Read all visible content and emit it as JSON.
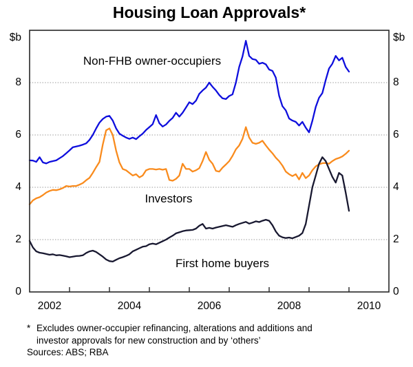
{
  "title": "Housing Loan Approvals*",
  "axes": {
    "unit_left": "$b",
    "unit_right": "$b",
    "y_ticks": [
      0,
      2,
      4,
      6,
      8
    ],
    "x_tick_years": [
      "2002",
      "2004",
      "2006",
      "2008",
      "2010"
    ]
  },
  "footnote": {
    "marker": "*",
    "line1": "Excludes owner-occupier refinancing, alterations and additions and",
    "line2": "investor approvals for new construction and by ‘others’",
    "sources": "Sources: ABS; RBA"
  },
  "colors": {
    "non_fhb": "#0e0edd",
    "investors": "#f98b1d",
    "fhb": "#181830",
    "gridline": "#9a9a9a",
    "axis": "#262626"
  },
  "chart_data": {
    "type": "line",
    "title": "Housing Loan Approvals*",
    "ylabel": "$b",
    "ylim": [
      0,
      10
    ],
    "y_gridlines": [
      2,
      4,
      6,
      8
    ],
    "x_start": "2002-01",
    "x_end": "2010-01",
    "frequency": "monthly",
    "x_axis_span_years": 9,
    "x_year_tick_boundaries": [
      2003,
      2004,
      2005,
      2006,
      2007,
      2008,
      2009,
      2010
    ],
    "grid": "dotted-horizontal",
    "legend_position": "inline-labels",
    "series": [
      {
        "name": "Non-FHB owner-occupiers",
        "color": "#0e0edd",
        "values": [
          5.03,
          5.02,
          4.97,
          5.15,
          4.95,
          4.91,
          4.97,
          5.0,
          5.03,
          5.11,
          5.19,
          5.3,
          5.41,
          5.53,
          5.56,
          5.59,
          5.63,
          5.68,
          5.81,
          6.0,
          6.25,
          6.47,
          6.61,
          6.7,
          6.73,
          6.55,
          6.25,
          6.05,
          5.97,
          5.9,
          5.85,
          5.9,
          5.84,
          5.95,
          6.05,
          6.19,
          6.3,
          6.41,
          6.76,
          6.45,
          6.32,
          6.4,
          6.54,
          6.65,
          6.85,
          6.7,
          6.85,
          7.05,
          7.25,
          7.18,
          7.31,
          7.57,
          7.7,
          7.81,
          8.0,
          7.84,
          7.7,
          7.53,
          7.4,
          7.37,
          7.49,
          7.55,
          8.0,
          8.6,
          9.0,
          9.6,
          9.02,
          8.9,
          8.87,
          8.72,
          8.76,
          8.7,
          8.5,
          8.45,
          8.19,
          7.5,
          7.1,
          6.94,
          6.63,
          6.55,
          6.5,
          6.36,
          6.5,
          6.28,
          6.1,
          6.54,
          7.07,
          7.42,
          7.6,
          8.1,
          8.54,
          8.72,
          9.02,
          8.85,
          8.95,
          8.6,
          8.42
        ]
      },
      {
        "name": "Investors",
        "color": "#f98b1d",
        "values": [
          3.35,
          3.5,
          3.58,
          3.62,
          3.7,
          3.8,
          3.86,
          3.9,
          3.89,
          3.92,
          3.97,
          4.05,
          4.03,
          4.05,
          4.05,
          4.1,
          4.16,
          4.27,
          4.36,
          4.55,
          4.77,
          4.97,
          5.63,
          6.18,
          6.25,
          6.0,
          5.4,
          4.95,
          4.7,
          4.65,
          4.55,
          4.45,
          4.5,
          4.38,
          4.45,
          4.65,
          4.7,
          4.7,
          4.68,
          4.7,
          4.67,
          4.7,
          4.28,
          4.25,
          4.32,
          4.45,
          4.9,
          4.7,
          4.7,
          4.6,
          4.65,
          4.73,
          5.0,
          5.35,
          5.05,
          4.9,
          4.63,
          4.6,
          4.75,
          4.87,
          5.0,
          5.2,
          5.45,
          5.6,
          5.85,
          6.3,
          5.9,
          5.7,
          5.66,
          5.7,
          5.78,
          5.6,
          5.44,
          5.3,
          5.13,
          5.0,
          4.83,
          4.6,
          4.5,
          4.43,
          4.5,
          4.3,
          4.55,
          4.35,
          4.45,
          4.65,
          4.8,
          4.88,
          4.92,
          4.93,
          4.9,
          5.0,
          5.08,
          5.12,
          5.18,
          5.28,
          5.4
        ]
      },
      {
        "name": "First home buyers",
        "color": "#181830",
        "values": [
          1.95,
          1.7,
          1.55,
          1.5,
          1.48,
          1.45,
          1.42,
          1.44,
          1.4,
          1.41,
          1.39,
          1.36,
          1.33,
          1.35,
          1.37,
          1.38,
          1.4,
          1.49,
          1.55,
          1.58,
          1.53,
          1.44,
          1.35,
          1.24,
          1.18,
          1.16,
          1.23,
          1.29,
          1.33,
          1.38,
          1.44,
          1.55,
          1.61,
          1.67,
          1.73,
          1.75,
          1.82,
          1.85,
          1.82,
          1.88,
          1.94,
          2.0,
          2.08,
          2.15,
          2.24,
          2.28,
          2.32,
          2.35,
          2.36,
          2.37,
          2.42,
          2.53,
          2.6,
          2.42,
          2.45,
          2.42,
          2.46,
          2.49,
          2.52,
          2.55,
          2.52,
          2.49,
          2.55,
          2.6,
          2.64,
          2.68,
          2.61,
          2.65,
          2.7,
          2.67,
          2.72,
          2.76,
          2.72,
          2.55,
          2.31,
          2.15,
          2.09,
          2.06,
          2.08,
          2.05,
          2.1,
          2.15,
          2.25,
          2.6,
          3.3,
          4.0,
          4.45,
          4.9,
          5.15,
          5.0,
          4.7,
          4.4,
          4.18,
          4.55,
          4.45,
          3.8,
          3.1
        ]
      }
    ]
  }
}
